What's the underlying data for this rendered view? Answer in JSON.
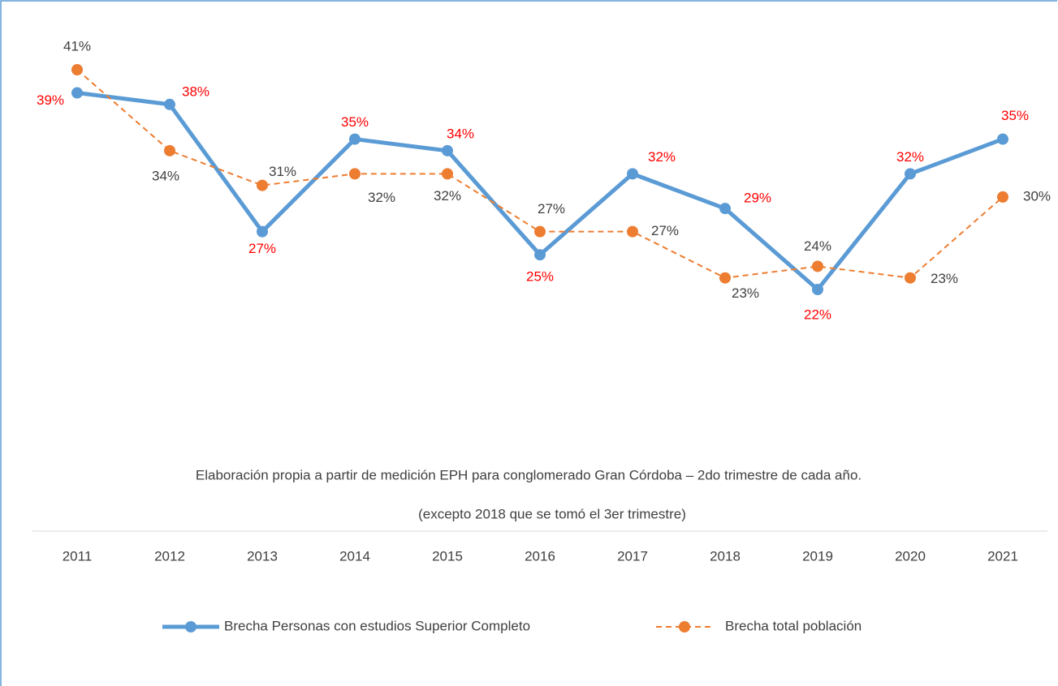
{
  "chart_data": {
    "type": "line",
    "notes": [
      "Elaboración propia a partir de medición EPH para conglomerado Gran Córdoba – 2do trimestre de cada año.",
      "(excepto 2018 que se tomó el 3er trimestre)"
    ],
    "categories": [
      "2011",
      "2012",
      "2013",
      "2014",
      "2015",
      "2016",
      "2017",
      "2018",
      "2019",
      "2020",
      "2021"
    ],
    "series": [
      {
        "name": "Brecha  Personas con estudios Superior Completo",
        "color": "#5b9bd5",
        "label_color": "#ff0000",
        "line_style": "solid",
        "values": [
          39,
          38,
          27,
          35,
          34,
          25,
          32,
          29,
          22,
          32,
          35
        ],
        "value_labels": [
          "39%",
          "38%",
          "27%",
          "35%",
          "34%",
          "25%",
          "32%",
          "29%",
          "22%",
          "32%",
          "35%"
        ]
      },
      {
        "name": "Brecha total población",
        "color": "#ed7d31",
        "label_color": "#404040",
        "line_style": "dashed",
        "values": [
          41,
          34,
          31,
          32,
          32,
          27,
          27,
          23,
          24,
          23,
          30
        ],
        "value_labels": [
          "41%",
          "34%",
          "31%",
          "32%",
          "32%",
          "27%",
          "27%",
          "23%",
          "24%",
          "23%",
          "30%"
        ]
      }
    ]
  }
}
